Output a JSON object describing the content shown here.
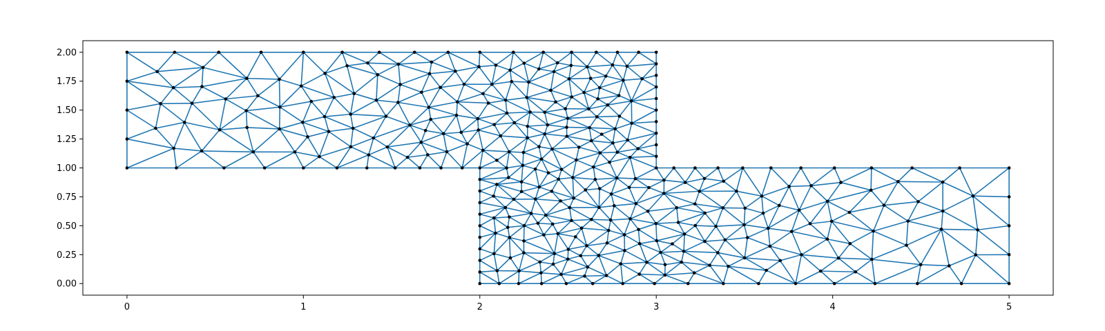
{
  "chart_data": {
    "type": "triplot",
    "title": "",
    "xlabel": "",
    "ylabel": "",
    "xlim": [
      -0.25,
      5.25
    ],
    "ylim": [
      -0.1,
      2.1
    ],
    "xticks": [
      0,
      1,
      2,
      3,
      4,
      5
    ],
    "xtick_labels": [
      "0",
      "1",
      "2",
      "3",
      "4",
      "5"
    ],
    "yticks": [
      0.0,
      0.25,
      0.5,
      0.75,
      1.0,
      1.25,
      1.5,
      1.75,
      2.0
    ],
    "ytick_labels": [
      "0.00",
      "0.25",
      "0.50",
      "0.75",
      "1.00",
      "1.25",
      "1.50",
      "1.75",
      "2.00"
    ],
    "domain_regions": [
      {
        "xmin": 0,
        "xmax": 3,
        "ymin": 1,
        "ymax": 2
      },
      {
        "xmin": 2,
        "xmax": 5,
        "ymin": 0,
        "ymax": 1
      }
    ],
    "edge_color": "#1f77b4",
    "node_color": "#000000",
    "boundary_nodes_x_top_left": [
      0,
      0.27,
      0.52,
      0.76,
      1.0,
      1.22,
      1.43,
      1.63,
      1.82,
      2.0,
      2.19,
      2.36,
      2.52,
      2.66,
      2.78,
      2.9,
      3.0
    ],
    "boundary_nodes_x_bottom_left": [
      0,
      0.28,
      0.55,
      0.78,
      1.0,
      1.19,
      1.36,
      1.52,
      1.66,
      1.78,
      1.9,
      2.0
    ],
    "boundary_nodes_x_top_right": [
      3.0,
      3.1,
      3.22,
      3.35,
      3.49,
      3.65,
      3.82,
      4.01,
      4.22,
      4.45,
      4.72,
      5.0
    ],
    "boundary_nodes_x_bottom_right": [
      2.0,
      2.11,
      2.22,
      2.35,
      2.49,
      2.64,
      2.81,
      2.99,
      3.18,
      3.38,
      3.58,
      3.79,
      4.01,
      4.24,
      4.48,
      4.73,
      5.0
    ],
    "boundary_nodes_y_left_x0": [
      1.0,
      1.25,
      1.5,
      1.75,
      2.0
    ],
    "boundary_nodes_y_right_x3_upper": [
      1.0,
      1.1,
      1.2,
      1.3,
      1.4,
      1.5,
      1.6,
      1.7,
      1.8,
      1.9,
      2.0
    ],
    "boundary_nodes_y_left_x2_lower": [
      0.0,
      0.1,
      0.2,
      0.3,
      0.4,
      0.5,
      0.6,
      0.7,
      0.8,
      0.9,
      1.0
    ],
    "boundary_nodes_y_right_x5": [
      0.0,
      0.25,
      0.5,
      0.75,
      1.0
    ],
    "mesh_note_free": "unstructured triangular mesh, refined near the reentrant corner (2,1)-(3,1)"
  }
}
